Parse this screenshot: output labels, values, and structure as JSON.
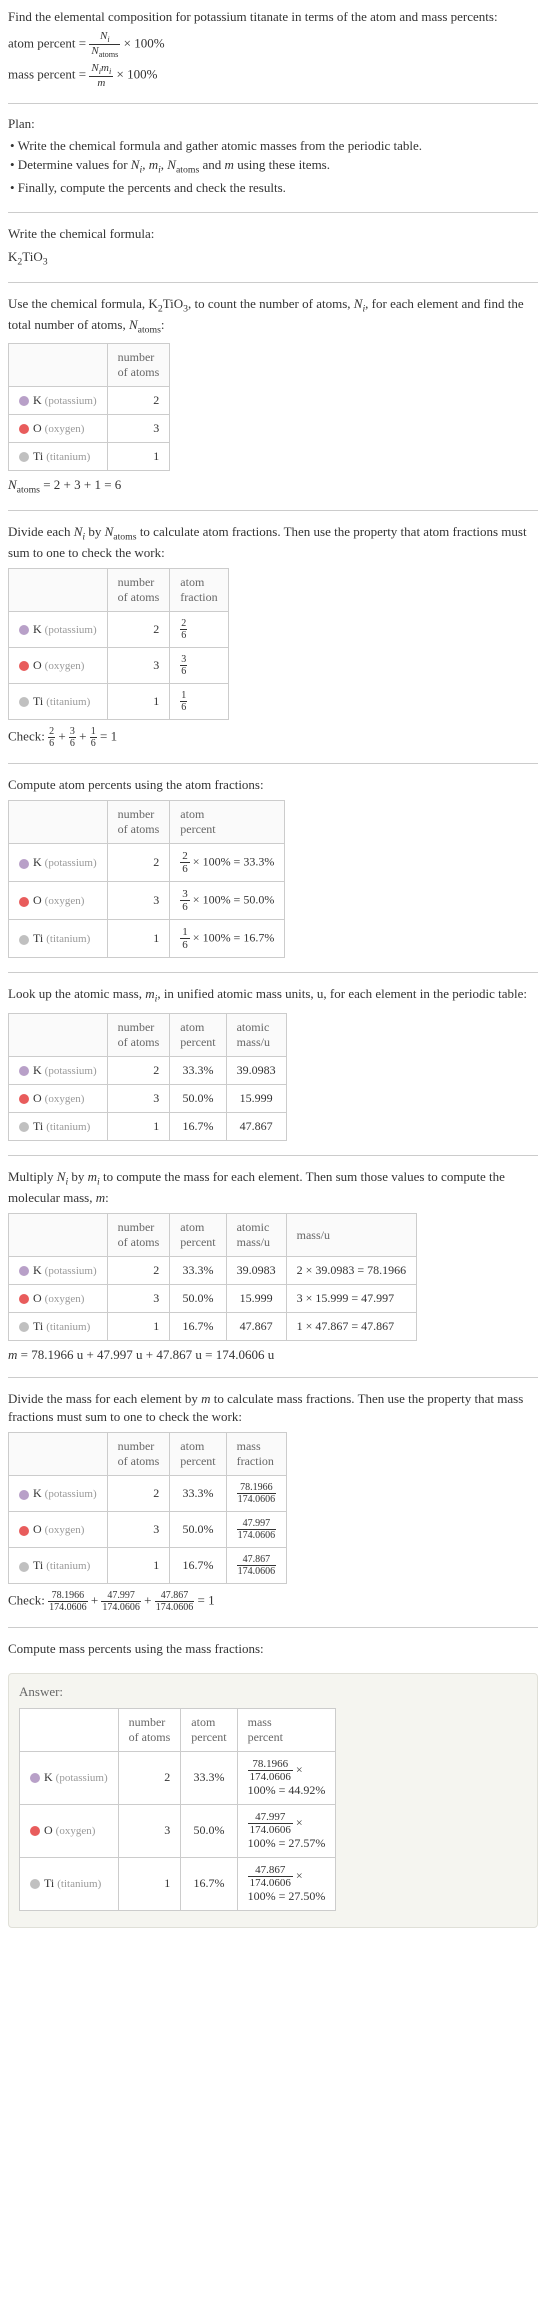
{
  "intro": {
    "line1": "Find the elemental composition for potassium titanate in terms of the atom and mass percents:",
    "atom_percent_label": "atom percent",
    "mass_percent_label": "mass percent",
    "eq": " = ",
    "times100": " × 100%",
    "Ni": "N",
    "Ni_sub": "i",
    "Natoms": "N",
    "Natoms_sub": "atoms",
    "Nimi": "N",
    "mi": "m",
    "m": "m"
  },
  "plan": {
    "heading": "Plan:",
    "b1": "• Write the chemical formula and gather atomic masses from the periodic table.",
    "b2_a": "• Determine values for ",
    "b2_b": " and ",
    "b2_c": " using these items.",
    "b3": "• Finally, compute the percents and check the results."
  },
  "step1": {
    "text": "Write the chemical formula:",
    "formula": "K",
    "f2": "2",
    "f3": "TiO",
    "f4": "3"
  },
  "step2": {
    "text_a": "Use the chemical formula, K",
    "text_b": "TiO",
    "text_c": ", to count the number of atoms, ",
    "text_d": ", for each element and find the total number of atoms, ",
    "text_e": ":",
    "sub2": "2",
    "sub3": "3",
    "col1": "",
    "col2_l1": "number",
    "col2_l2": "of atoms",
    "rows": [
      {
        "color": "#b8a0c8",
        "sym": "K",
        "name": "(potassium)",
        "n": "2"
      },
      {
        "color": "#e85c5c",
        "sym": "O",
        "name": "(oxygen)",
        "n": "3"
      },
      {
        "color": "#c0c0c0",
        "sym": "Ti",
        "name": "(titanium)",
        "n": "1"
      }
    ],
    "natoms_eq": " = 2 + 3 + 1 = 6"
  },
  "step3": {
    "text_a": "Divide each ",
    "text_b": " by ",
    "text_c": " to calculate atom fractions. Then use the property that atom fractions must sum to one to check the work:",
    "col3_l1": "atom",
    "col3_l2": "fraction",
    "rows": [
      {
        "color": "#b8a0c8",
        "sym": "K",
        "name": "(potassium)",
        "n": "2",
        "fnum": "2",
        "fden": "6"
      },
      {
        "color": "#e85c5c",
        "sym": "O",
        "name": "(oxygen)",
        "n": "3",
        "fnum": "3",
        "fden": "6"
      },
      {
        "color": "#c0c0c0",
        "sym": "Ti",
        "name": "(titanium)",
        "n": "1",
        "fnum": "1",
        "fden": "6"
      }
    ],
    "check_label": "Check: ",
    "check_eq": " = 1",
    "plus": " + "
  },
  "step4": {
    "text": "Compute atom percents using the atom fractions:",
    "col3_l1": "atom",
    "col3_l2": "percent",
    "rows": [
      {
        "color": "#b8a0c8",
        "sym": "K",
        "name": "(potassium)",
        "n": "2",
        "fnum": "2",
        "fden": "6",
        "pct": " × 100% = 33.3%"
      },
      {
        "color": "#e85c5c",
        "sym": "O",
        "name": "(oxygen)",
        "n": "3",
        "fnum": "3",
        "fden": "6",
        "pct": " × 100% = 50.0%"
      },
      {
        "color": "#c0c0c0",
        "sym": "Ti",
        "name": "(titanium)",
        "n": "1",
        "fnum": "1",
        "fden": "6",
        "pct": " × 100% = 16.7%"
      }
    ]
  },
  "step5": {
    "text_a": "Look up the atomic mass, ",
    "text_b": ", in unified atomic mass units, u, for each element in the periodic table:",
    "col3_l1": "atom",
    "col3_l2": "percent",
    "col4_l1": "atomic",
    "col4_l2": "mass/u",
    "rows": [
      {
        "color": "#b8a0c8",
        "sym": "K",
        "name": "(potassium)",
        "n": "2",
        "pct": "33.3%",
        "mass": "39.0983"
      },
      {
        "color": "#e85c5c",
        "sym": "O",
        "name": "(oxygen)",
        "n": "3",
        "pct": "50.0%",
        "mass": "15.999"
      },
      {
        "color": "#c0c0c0",
        "sym": "Ti",
        "name": "(titanium)",
        "n": "1",
        "pct": "16.7%",
        "mass": "47.867"
      }
    ]
  },
  "step6": {
    "text_a": "Multiply ",
    "text_b": " by ",
    "text_c": " to compute the mass for each element. Then sum those values to compute the molecular mass, ",
    "text_d": ":",
    "col5": "mass/u",
    "rows": [
      {
        "color": "#b8a0c8",
        "sym": "K",
        "name": "(potassium)",
        "n": "2",
        "pct": "33.3%",
        "mass": "39.0983",
        "calc": "2 × 39.0983 = 78.1966"
      },
      {
        "color": "#e85c5c",
        "sym": "O",
        "name": "(oxygen)",
        "n": "3",
        "pct": "50.0%",
        "mass": "15.999",
        "calc": "3 × 15.999 = 47.997"
      },
      {
        "color": "#c0c0c0",
        "sym": "Ti",
        "name": "(titanium)",
        "n": "1",
        "pct": "16.7%",
        "mass": "47.867",
        "calc": "1 × 47.867 = 47.867"
      }
    ],
    "m_eq": " = 78.1966 u + 47.997 u + 47.867 u = 174.0606 u"
  },
  "step7": {
    "text_a": "Divide the mass for each element by ",
    "text_b": " to calculate mass fractions. Then use the property that mass fractions must sum to one to check the work:",
    "col4_l1": "mass",
    "col4_l2": "fraction",
    "rows": [
      {
        "color": "#b8a0c8",
        "sym": "K",
        "name": "(potassium)",
        "n": "2",
        "pct": "33.3%",
        "fnum": "78.1966",
        "fden": "174.0606"
      },
      {
        "color": "#e85c5c",
        "sym": "O",
        "name": "(oxygen)",
        "n": "3",
        "pct": "50.0%",
        "fnum": "47.997",
        "fden": "174.0606"
      },
      {
        "color": "#c0c0c0",
        "sym": "Ti",
        "name": "(titanium)",
        "n": "1",
        "pct": "16.7%",
        "fnum": "47.867",
        "fden": "174.0606"
      }
    ],
    "check_label": "Check: ",
    "check_eq": " = 1",
    "f1num": "78.1966",
    "f2num": "47.997",
    "f3num": "47.867",
    "fden": "174.0606"
  },
  "step8": {
    "text": "Compute mass percents using the mass fractions:"
  },
  "answer": {
    "label": "Answer:",
    "col4_l1": "mass",
    "col4_l2": "percent",
    "rows": [
      {
        "color": "#b8a0c8",
        "sym": "K",
        "name": "(potassium)",
        "n": "2",
        "pct": "33.3%",
        "fnum": "78.1966",
        "fden": "174.0606",
        "res": "100% = 44.92%"
      },
      {
        "color": "#e85c5c",
        "sym": "O",
        "name": "(oxygen)",
        "n": "3",
        "pct": "50.0%",
        "fnum": "47.997",
        "fden": "174.0606",
        "res": "100% = 27.57%"
      },
      {
        "color": "#c0c0c0",
        "sym": "Ti",
        "name": "(titanium)",
        "n": "1",
        "pct": "16.7%",
        "fnum": "47.867",
        "fden": "174.0606",
        "res": "100% = 27.50%"
      }
    ],
    "times": " ×"
  },
  "common": {
    "num_atoms_l1": "number",
    "num_atoms_l2": "of atoms"
  }
}
